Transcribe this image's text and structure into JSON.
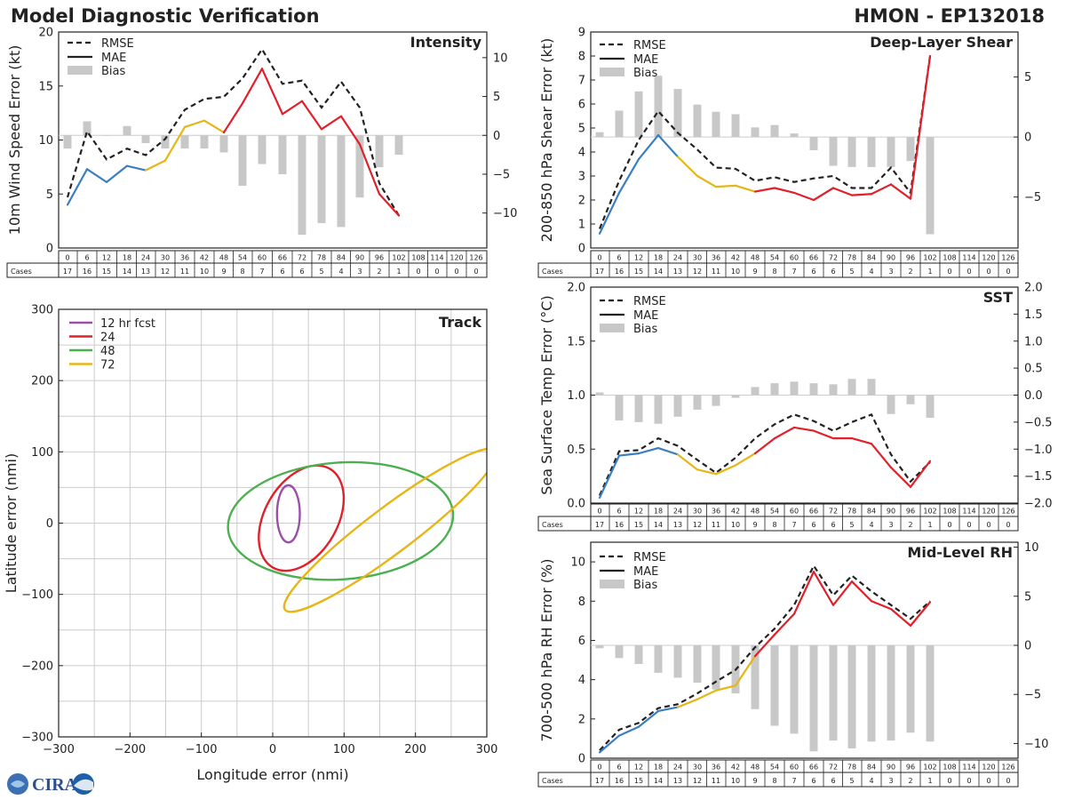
{
  "header": {
    "left_title": "Model Diagnostic Verification",
    "right_title": "HMON - EP132018"
  },
  "logo_text": "CIRA",
  "colors": {
    "rmse": "#222222",
    "mae_blue": "#3a7fc0",
    "mae_yellow": "#e8b516",
    "mae_red": "#e0202a",
    "bias": "#c8c8c8",
    "grid": "#cccccc",
    "track_12": "#9b4fa8",
    "track_24": "#e0202a",
    "track_48": "#4caf50",
    "track_72": "#e8b516"
  },
  "legend_labels": {
    "rmse": "RMSE",
    "mae": "MAE",
    "bias": "Bias"
  },
  "hours": [
    "0",
    "6",
    "12",
    "18",
    "24",
    "30",
    "36",
    "42",
    "48",
    "54",
    "60",
    "66",
    "72",
    "78",
    "84",
    "90",
    "96",
    "102",
    "108",
    "114",
    "120",
    "126"
  ],
  "cases_label": "Cases",
  "cases": [
    "17",
    "16",
    "15",
    "14",
    "13",
    "12",
    "11",
    "10",
    "9",
    "8",
    "7",
    "6",
    "6",
    "5",
    "4",
    "3",
    "2",
    "1",
    "0",
    "0",
    "0",
    "0"
  ],
  "chart_data": [
    {
      "type": "line",
      "title": "Intensity",
      "ylabel": "10m Wind Speed Error (kt)",
      "ylim": [
        0,
        20
      ],
      "yticks": [
        "0",
        "5",
        "10",
        "15",
        "20"
      ],
      "y2lim": [
        -14.5,
        13.3
      ],
      "y2ticks": [
        "−10",
        "−5",
        "0",
        "5",
        "10"
      ],
      "legend_position": "top-left",
      "x": [
        0,
        6,
        12,
        18,
        24,
        30,
        36,
        42,
        48,
        54,
        60,
        66,
        72,
        78,
        84,
        90,
        96,
        102
      ],
      "series": [
        {
          "name": "RMSE",
          "axis": "left",
          "values": [
            4.7,
            10.8,
            8.2,
            9.2,
            8.6,
            10.1,
            12.8,
            13.8,
            14.0,
            15.7,
            18.4,
            15.2,
            15.5,
            13.0,
            15.4,
            13.0,
            6.0,
            3.0
          ]
        },
        {
          "name": "MAE",
          "axis": "left",
          "values": [
            4.0,
            7.3,
            6.1,
            7.6,
            7.2,
            8.1,
            11.2,
            11.8,
            10.7,
            13.4,
            16.6,
            12.4,
            13.6,
            11.0,
            12.2,
            9.6,
            5.0,
            3.0
          ]
        },
        {
          "name": "Bias",
          "axis": "right",
          "values": [
            -1.7,
            1.8,
            0,
            1.2,
            -1.0,
            -1.7,
            -1.7,
            -1.7,
            -2.2,
            -6.5,
            -3.7,
            -5.0,
            -12.8,
            -11.3,
            -11.8,
            -8.0,
            -4.1,
            -2.5
          ]
        }
      ]
    },
    {
      "type": "line",
      "title": "Deep-Layer Shear",
      "ylabel": "200-850 hPa Shear Error (kt)",
      "ylim": [
        0,
        9
      ],
      "yticks": [
        "0",
        "1",
        "2",
        "3",
        "4",
        "5",
        "6",
        "7",
        "8",
        "9"
      ],
      "y2lim": [
        -9.25,
        8.75
      ],
      "y2ticks": [
        "−5",
        "0",
        "5"
      ],
      "legend_position": "top-left",
      "x": [
        0,
        6,
        12,
        18,
        24,
        30,
        36,
        42,
        48,
        54,
        60,
        66,
        72,
        78,
        84,
        90,
        96,
        102
      ],
      "series": [
        {
          "name": "RMSE",
          "axis": "left",
          "values": [
            0.8,
            2.8,
            4.5,
            5.7,
            4.8,
            4.1,
            3.35,
            3.3,
            2.8,
            2.95,
            2.75,
            2.9,
            3.0,
            2.5,
            2.5,
            3.35,
            2.3,
            8.0
          ]
        },
        {
          "name": "MAE",
          "axis": "left",
          "values": [
            0.6,
            2.3,
            3.7,
            4.7,
            3.8,
            3.0,
            2.55,
            2.6,
            2.35,
            2.5,
            2.3,
            2.0,
            2.5,
            2.2,
            2.25,
            2.65,
            2.05,
            8.0
          ]
        },
        {
          "name": "Bias",
          "axis": "right",
          "values": [
            0.4,
            2.2,
            3.8,
            5.1,
            4.0,
            2.7,
            2.1,
            1.9,
            0.8,
            1.0,
            0.3,
            -1.1,
            -2.4,
            -2.5,
            -2.5,
            -2.5,
            -2.0,
            -8.1
          ]
        }
      ]
    },
    {
      "type": "line",
      "title": "SST",
      "ylabel": "Sea Surface Temp Error (°C)",
      "ylim": [
        0,
        2.0
      ],
      "yticks": [
        "0.0",
        "0.5",
        "1.0",
        "1.5",
        "2.0"
      ],
      "y2lim": [
        -2.0,
        2.0
      ],
      "y2ticks": [
        "−2.0",
        "−1.5",
        "−1.0",
        "−0.5",
        "0.0",
        "0.5",
        "1.0",
        "1.5",
        "2.0"
      ],
      "legend_position": "top-left",
      "x": [
        0,
        6,
        12,
        18,
        24,
        30,
        36,
        42,
        48,
        54,
        60,
        66,
        72,
        78,
        84,
        90,
        96,
        102
      ],
      "series": [
        {
          "name": "RMSE",
          "axis": "left",
          "values": [
            0.07,
            0.48,
            0.49,
            0.6,
            0.53,
            0.4,
            0.28,
            0.42,
            0.6,
            0.73,
            0.82,
            0.76,
            0.67,
            0.75,
            0.82,
            0.45,
            0.2,
            0.38
          ]
        },
        {
          "name": "MAE",
          "axis": "left",
          "values": [
            0.05,
            0.44,
            0.46,
            0.51,
            0.45,
            0.31,
            0.27,
            0.35,
            0.46,
            0.6,
            0.7,
            0.67,
            0.6,
            0.6,
            0.55,
            0.33,
            0.15,
            0.39
          ]
        },
        {
          "name": "Bias",
          "axis": "right",
          "values": [
            0.05,
            -0.47,
            -0.5,
            -0.53,
            -0.4,
            -0.27,
            -0.2,
            -0.05,
            0.15,
            0.22,
            0.25,
            0.22,
            0.2,
            0.3,
            0.3,
            -0.35,
            -0.17,
            -0.42
          ]
        }
      ]
    },
    {
      "type": "line",
      "title": "Mid-Level RH",
      "ylabel": "700-500 hPa RH Error (%)",
      "ylim": [
        0,
        11
      ],
      "yticks": [
        "0",
        "2",
        "4",
        "6",
        "8",
        "10"
      ],
      "y2lim": [
        -11.5,
        10.5
      ],
      "y2ticks": [
        "−10",
        "−5",
        "0",
        "5",
        "10"
      ],
      "legend_position": "top-left",
      "x": [
        0,
        6,
        12,
        18,
        24,
        30,
        36,
        42,
        48,
        54,
        60,
        66,
        72,
        78,
        84,
        90,
        96,
        102
      ],
      "series": [
        {
          "name": "RMSE",
          "axis": "left",
          "values": [
            0.4,
            1.45,
            1.8,
            2.55,
            2.75,
            3.3,
            3.9,
            4.5,
            5.65,
            6.6,
            7.8,
            9.8,
            8.3,
            9.3,
            8.5,
            7.8,
            7.1,
            8.0
          ]
        },
        {
          "name": "MAE",
          "axis": "left",
          "values": [
            0.3,
            1.15,
            1.6,
            2.4,
            2.6,
            3.0,
            3.45,
            3.7,
            5.2,
            6.3,
            7.35,
            9.5,
            7.8,
            9.0,
            8.0,
            7.6,
            6.75,
            7.95
          ]
        },
        {
          "name": "Bias",
          "axis": "right",
          "values": [
            -0.3,
            -1.3,
            -1.9,
            -2.8,
            -3.3,
            -3.8,
            -4.5,
            -4.9,
            -6.5,
            -8.2,
            -9.0,
            -10.8,
            -9.7,
            -10.5,
            -9.8,
            -9.7,
            -8.9,
            -9.8
          ]
        }
      ]
    },
    {
      "type": "scatter",
      "title": "Track",
      "xlabel": "Longitude error (nmi)",
      "ylabel": "Latitude error (nmi)",
      "xlim": [
        -300,
        300
      ],
      "ylim": [
        -300,
        300
      ],
      "xticks": [
        "−300",
        "−200",
        "−100",
        "0",
        "100",
        "200",
        "300"
      ],
      "yticks": [
        "−300",
        "−200",
        "−100",
        "0",
        "100",
        "200",
        "300"
      ],
      "legend_position": "top-left",
      "ellipses": [
        {
          "label": "12 hr fcst",
          "cx": 22,
          "cy": 13,
          "rx": 16,
          "ry": 40,
          "angle": 0
        },
        {
          "label": "24",
          "cx": 40,
          "cy": 7,
          "rx": 51,
          "ry": 80,
          "angle": -30
        },
        {
          "label": "48",
          "cx": 95,
          "cy": 3,
          "rx": 158,
          "ry": 82,
          "angle": 4
        },
        {
          "label": "72",
          "cx": 165,
          "cy": -10,
          "rx": 185,
          "ry": 32,
          "angle": 37
        }
      ]
    }
  ]
}
